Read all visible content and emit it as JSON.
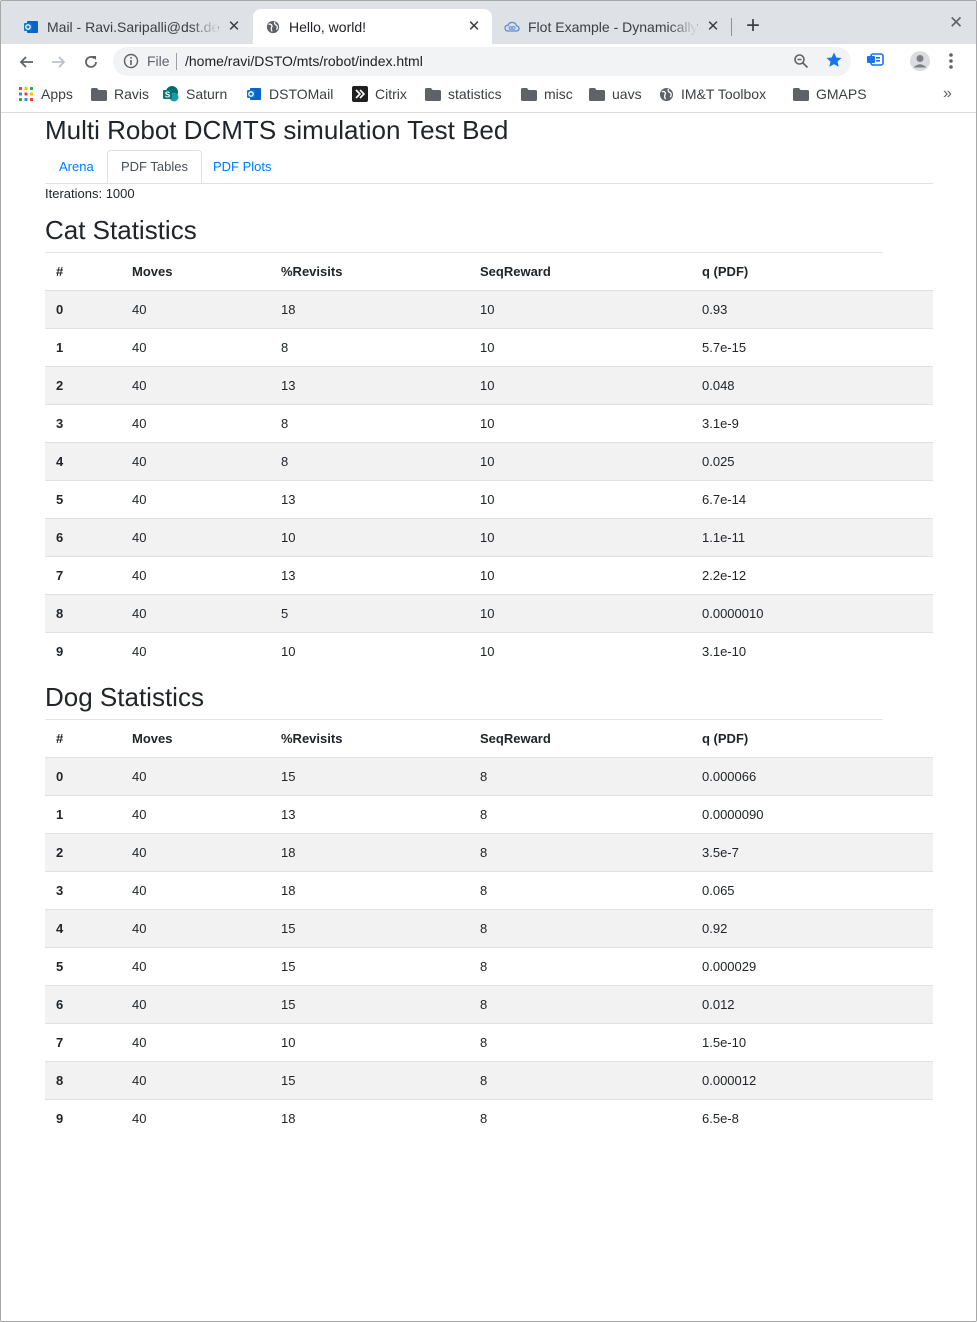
{
  "browser": {
    "tabs": [
      {
        "title": "Mail - Ravi.Saripalli@dst.de",
        "icon": "outlook-icon",
        "active": false
      },
      {
        "title": "Hello, world!",
        "icon": "globe-icon",
        "active": true
      },
      {
        "title": "Flot Example - Dynamically",
        "icon": "cloud-icon",
        "active": false
      }
    ],
    "close_glyph": "✕",
    "newtab_glyph": "+",
    "url_scheme": "File",
    "url": "/home/ravi/DSTO/mts/robot/index.html",
    "bookmarks": [
      {
        "label": "Apps",
        "icon": "apps-grid-icon"
      },
      {
        "label": "Ravis",
        "icon": "folder-icon"
      },
      {
        "label": "Saturn",
        "icon": "sharepoint-icon"
      },
      {
        "label": "DSTOMail",
        "icon": "outlook-icon"
      },
      {
        "label": "Citrix",
        "icon": "citrix-icon"
      },
      {
        "label": "statistics",
        "icon": "folder-icon"
      },
      {
        "label": "misc",
        "icon": "folder-icon"
      },
      {
        "label": "uavs",
        "icon": "folder-icon"
      },
      {
        "label": "IM&T Toolbox",
        "icon": "globe-icon"
      },
      {
        "label": "GMAPS",
        "icon": "folder-icon"
      }
    ],
    "bookmarks_more": "»"
  },
  "page": {
    "title": "Multi Robot DCMTS simulation Test Bed",
    "tabs": [
      "Arena",
      "PDF Tables",
      "PDF Plots"
    ],
    "active_tab": "PDF Tables",
    "iterations": "Iterations: 1000",
    "columns": [
      "#",
      "Moves",
      "%Revisits",
      "SeqReward",
      "q (PDF)"
    ],
    "cat": {
      "title": "Cat Statistics",
      "rows": [
        [
          "0",
          "40",
          "18",
          "10",
          "0.93"
        ],
        [
          "1",
          "40",
          "8",
          "10",
          "5.7e-15"
        ],
        [
          "2",
          "40",
          "13",
          "10",
          "0.048"
        ],
        [
          "3",
          "40",
          "8",
          "10",
          "3.1e-9"
        ],
        [
          "4",
          "40",
          "8",
          "10",
          "0.025"
        ],
        [
          "5",
          "40",
          "13",
          "10",
          "6.7e-14"
        ],
        [
          "6",
          "40",
          "10",
          "10",
          "1.1e-11"
        ],
        [
          "7",
          "40",
          "13",
          "10",
          "2.2e-12"
        ],
        [
          "8",
          "40",
          "5",
          "10",
          "0.0000010"
        ],
        [
          "9",
          "40",
          "10",
          "10",
          "3.1e-10"
        ]
      ]
    },
    "dog": {
      "title": "Dog Statistics",
      "rows": [
        [
          "0",
          "40",
          "15",
          "8",
          "0.000066"
        ],
        [
          "1",
          "40",
          "13",
          "8",
          "0.0000090"
        ],
        [
          "2",
          "40",
          "18",
          "8",
          "3.5e-7"
        ],
        [
          "3",
          "40",
          "18",
          "8",
          "0.065"
        ],
        [
          "4",
          "40",
          "15",
          "8",
          "0.92"
        ],
        [
          "5",
          "40",
          "15",
          "8",
          "0.000029"
        ],
        [
          "6",
          "40",
          "15",
          "8",
          "0.012"
        ],
        [
          "7",
          "40",
          "10",
          "8",
          "1.5e-10"
        ],
        [
          "8",
          "40",
          "15",
          "8",
          "0.000012"
        ],
        [
          "9",
          "40",
          "18",
          "8",
          "6.5e-8"
        ]
      ]
    }
  }
}
